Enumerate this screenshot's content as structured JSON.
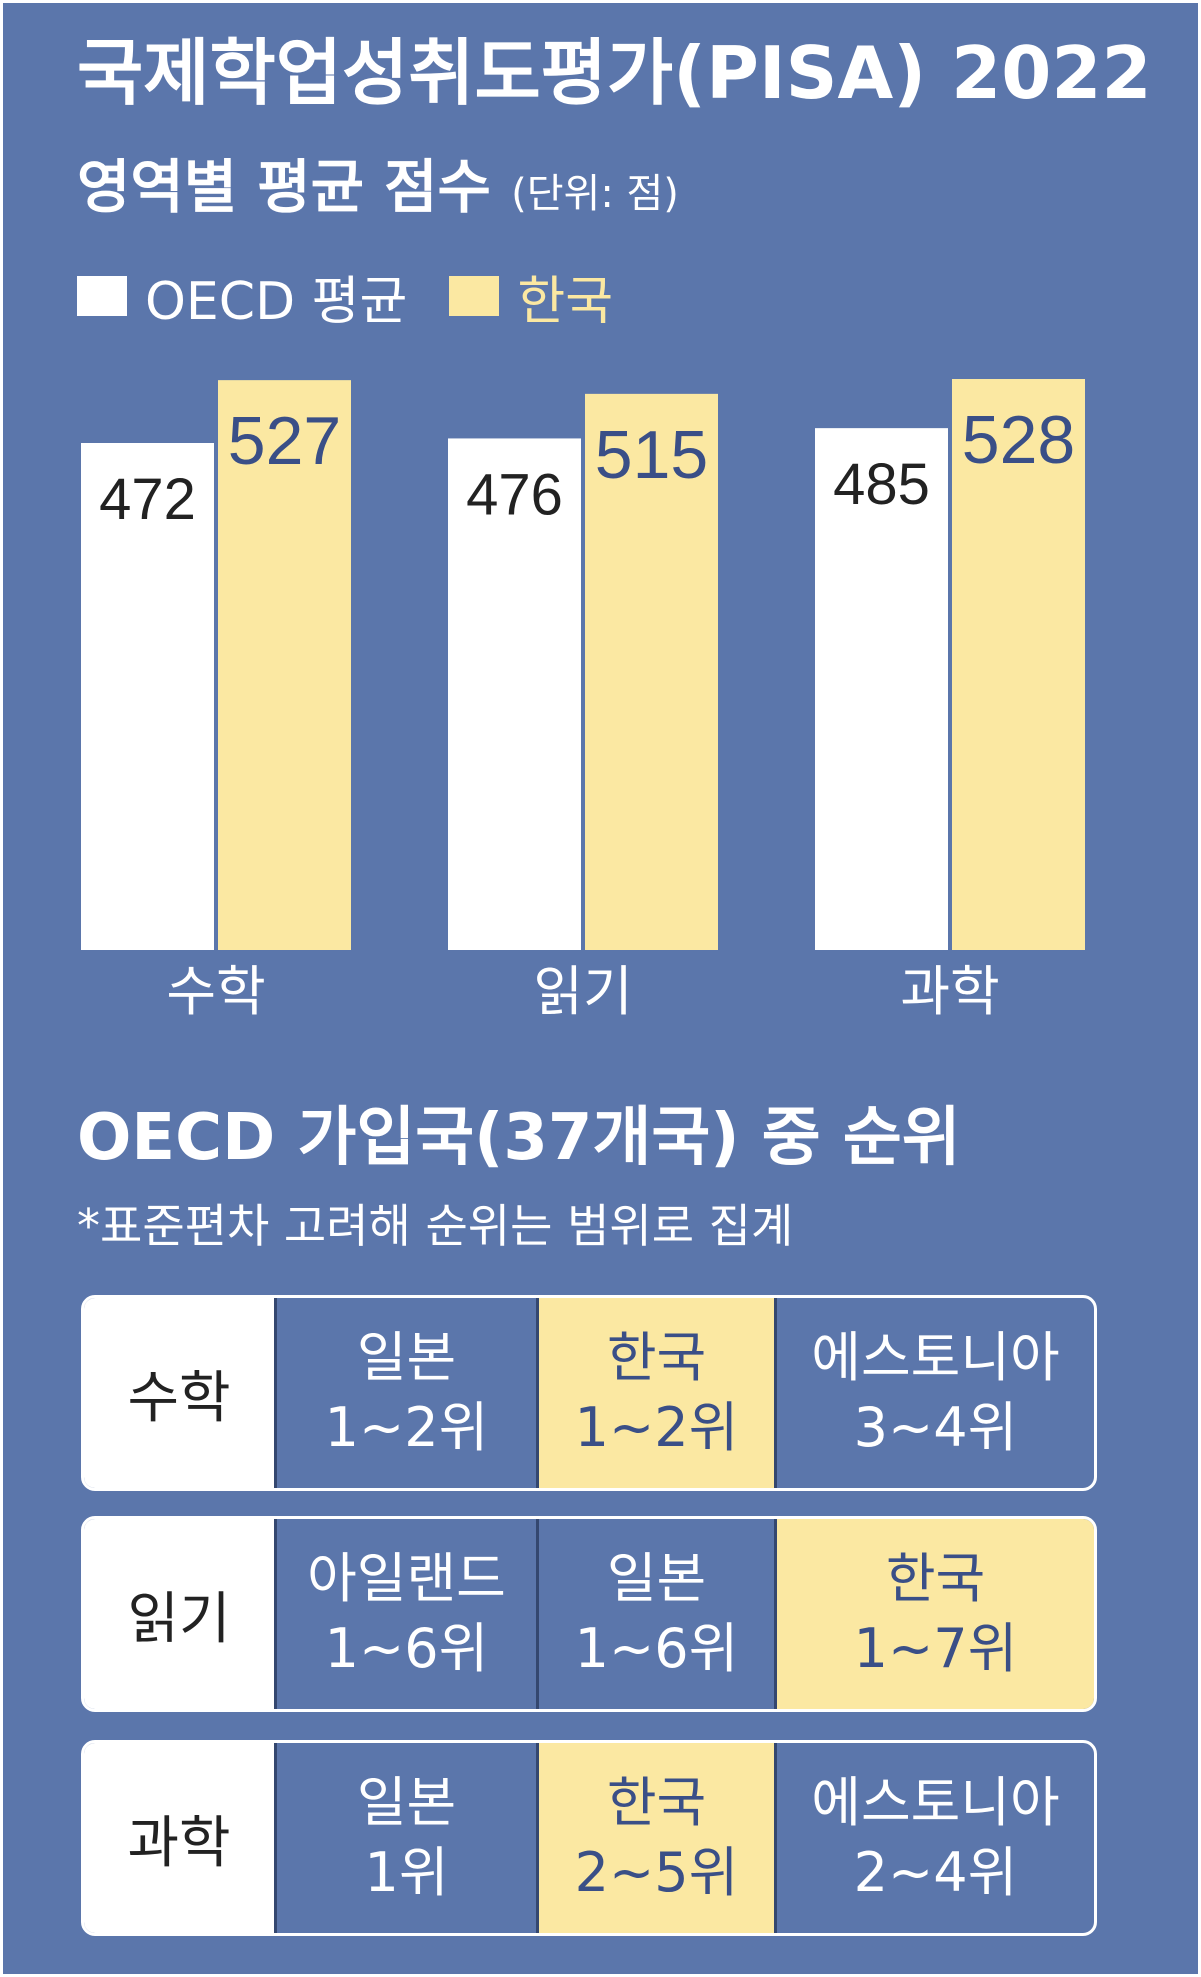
{
  "title": "국제학업성취도평가(PISA) 2022",
  "subtitle": "영역별 평균 점수",
  "unit": "(단위: 점)",
  "legend": [
    {
      "label": "OECD 평균",
      "color": "#ffffff"
    },
    {
      "label": "한국",
      "color": "#fbe8a2"
    }
  ],
  "colors": {
    "background": "#5b76ab",
    "oecd_bar": "#ffffff",
    "korea_bar": "#fbe8a2",
    "oecd_label": "#222222",
    "korea_label": "#3a4f87"
  },
  "chart_data": {
    "type": "bar",
    "categories": [
      "수학",
      "읽기",
      "과학"
    ],
    "series": [
      {
        "name": "OECD 평균",
        "values": [
          472,
          476,
          485
        ]
      },
      {
        "name": "한국",
        "values": [
          527,
          515,
          528
        ]
      }
    ],
    "title": "국제학업성취도평가(PISA) 2022",
    "subtitle": "영역별 평균 점수",
    "ylabel": "",
    "ylim": [
      0,
      540
    ],
    "grid": false,
    "legend_position": "top-left"
  },
  "rankings": {
    "title": "OECD 가입국(37개국) 중 순위",
    "note": "*표준편차 고려해 순위는 범위로 집계",
    "rows": [
      {
        "subject": "수학",
        "entries": [
          {
            "country": "일본",
            "rank": "1~2위",
            "korea": false
          },
          {
            "country": "한국",
            "rank": "1~2위",
            "korea": true
          },
          {
            "country": "에스토니아",
            "rank": "3~4위",
            "korea": false
          }
        ]
      },
      {
        "subject": "읽기",
        "entries": [
          {
            "country": "아일랜드",
            "rank": "1~6위",
            "korea": false
          },
          {
            "country": "일본",
            "rank": "1~6위",
            "korea": false
          },
          {
            "country": "한국",
            "rank": "1~7위",
            "korea": true
          }
        ]
      },
      {
        "subject": "과학",
        "entries": [
          {
            "country": "일본",
            "rank": "1위",
            "korea": false
          },
          {
            "country": "한국",
            "rank": "2~5위",
            "korea": true
          },
          {
            "country": "에스토니아",
            "rank": "2~4위",
            "korea": false
          }
        ]
      }
    ]
  }
}
